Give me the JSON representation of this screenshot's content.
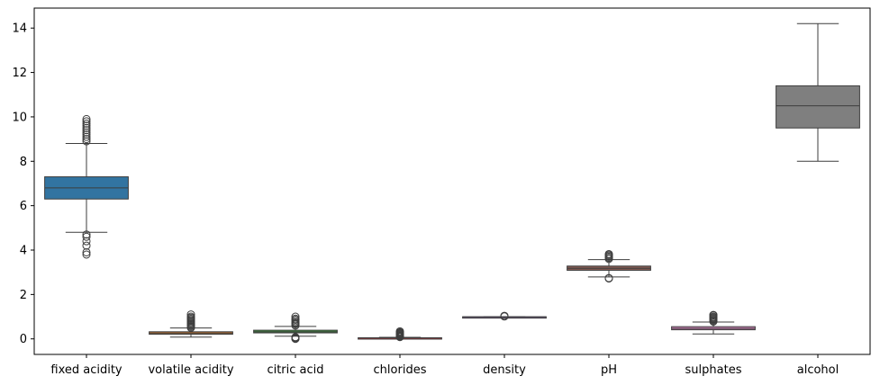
{
  "chart_data": {
    "type": "box",
    "title": "",
    "xlabel": "",
    "ylabel": "",
    "ylim": [
      -0.7,
      14.9
    ],
    "yticks": [
      0,
      2,
      4,
      6,
      8,
      10,
      12,
      14
    ],
    "ytick_labels": [
      "0",
      "2",
      "4",
      "6",
      "8",
      "10",
      "12",
      "14"
    ],
    "grid": false,
    "categories": [
      "fixed acidity",
      "volatile acidity",
      "citric acid",
      "chlorides",
      "density",
      "pH",
      "sulphates",
      "alcohol"
    ],
    "boxes": [
      {
        "name": "fixed acidity",
        "color": "#3274a1",
        "whisker_low": 4.8,
        "q1": 6.3,
        "median": 6.8,
        "q3": 7.3,
        "whisker_high": 8.8,
        "outliers": [
          3.8,
          3.9,
          4.2,
          4.4,
          4.6,
          4.7,
          8.9,
          9.0,
          9.1,
          9.2,
          9.3,
          9.4,
          9.5,
          9.6,
          9.7,
          9.8,
          9.9
        ]
      },
      {
        "name": "volatile acidity",
        "color": "#e1812c",
        "whisker_low": 0.08,
        "q1": 0.21,
        "median": 0.26,
        "q3": 0.32,
        "whisker_high": 0.49,
        "outliers": [
          0.5,
          0.55,
          0.6,
          0.65,
          0.7,
          0.75,
          0.8,
          0.85,
          0.9,
          0.95,
          1.0,
          1.1
        ]
      },
      {
        "name": "citric acid",
        "color": "#3a923a",
        "whisker_low": 0.12,
        "q1": 0.27,
        "median": 0.32,
        "q3": 0.39,
        "whisker_high": 0.56,
        "outliers": [
          0.0,
          0.02,
          0.05,
          0.08,
          0.6,
          0.66,
          0.7,
          0.74,
          0.8,
          0.86,
          0.91,
          1.0
        ]
      },
      {
        "name": "chlorides",
        "color": "#c03d3e",
        "whisker_low": 0.01,
        "q1": 0.036,
        "median": 0.043,
        "q3": 0.05,
        "whisker_high": 0.07,
        "outliers": [
          0.08,
          0.1,
          0.12,
          0.15,
          0.18,
          0.21,
          0.24,
          0.27,
          0.3,
          0.34
        ]
      },
      {
        "name": "density",
        "color": "#9372b2",
        "whisker_low": 0.987,
        "q1": 0.992,
        "median": 0.994,
        "q3": 0.996,
        "whisker_high": 1.002,
        "outliers": [
          1.01,
          1.039
        ]
      },
      {
        "name": "pH",
        "color": "#845b53",
        "whisker_low": 2.79,
        "q1": 3.09,
        "median": 3.18,
        "q3": 3.28,
        "whisker_high": 3.57,
        "outliers": [
          2.72,
          2.74,
          3.6,
          3.65,
          3.7,
          3.75,
          3.8,
          3.82
        ]
      },
      {
        "name": "sulphates",
        "color": "#d684bd",
        "whisker_low": 0.22,
        "q1": 0.41,
        "median": 0.47,
        "q3": 0.55,
        "whisker_high": 0.76,
        "outliers": [
          0.78,
          0.8,
          0.84,
          0.88,
          0.92,
          0.96,
          1.0,
          1.06,
          1.08
        ]
      },
      {
        "name": "alcohol",
        "color": "#7f7f7f",
        "whisker_low": 8.0,
        "q1": 9.5,
        "median": 10.5,
        "q3": 11.4,
        "whisker_high": 14.2,
        "outliers": []
      }
    ]
  }
}
